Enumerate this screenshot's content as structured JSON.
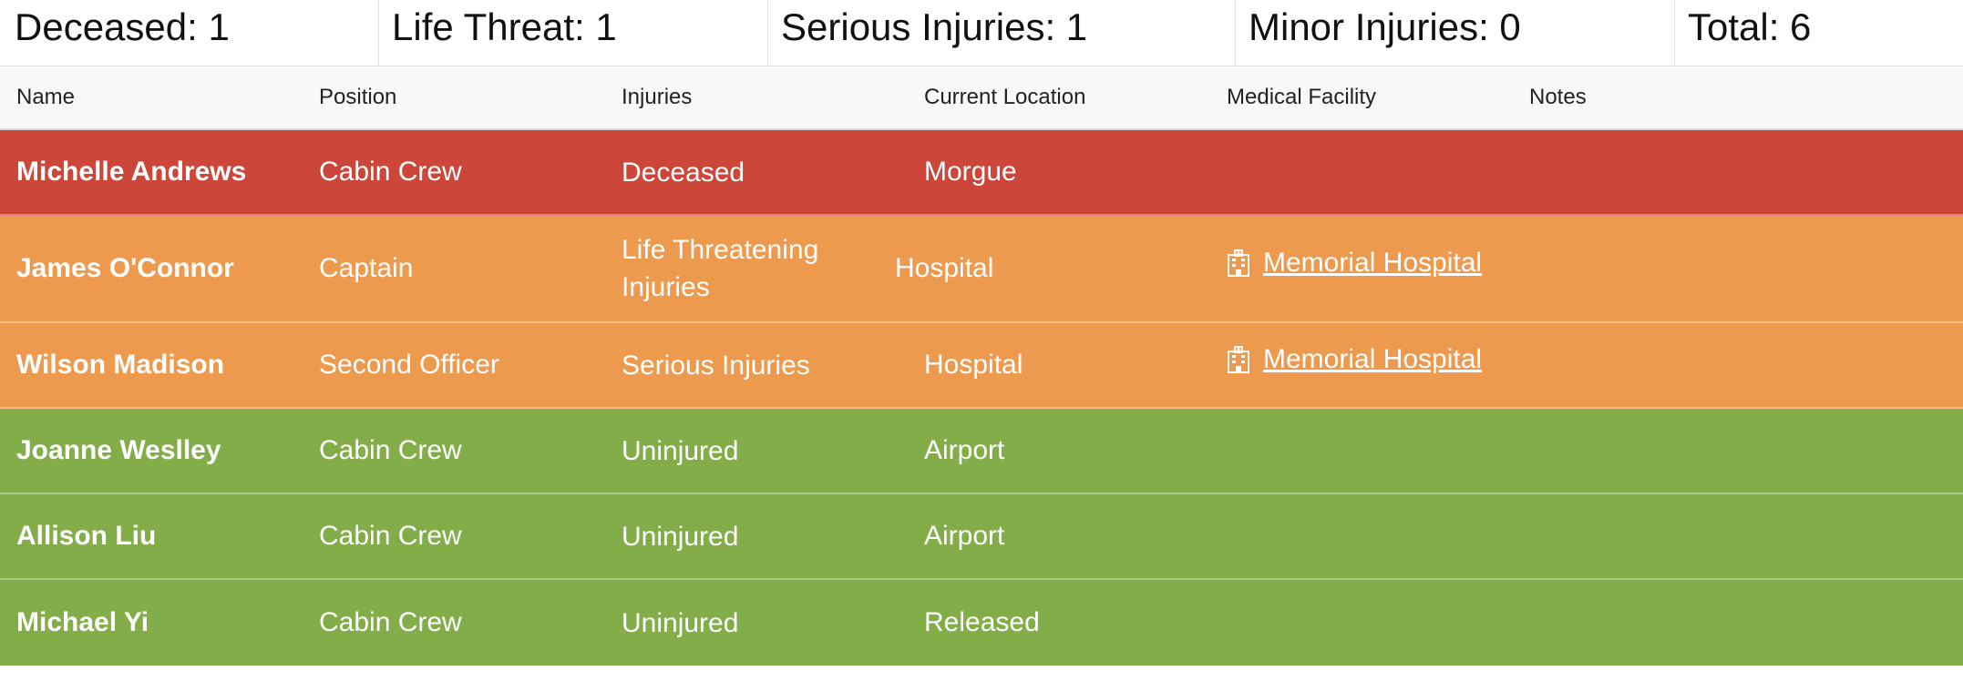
{
  "summary": {
    "deceased": "Deceased: 1",
    "life_threat": "Life Threat: 1",
    "serious": "Serious Injuries: 1",
    "minor": "Minor Injuries: 0",
    "total": "Total: 6"
  },
  "table": {
    "headers": {
      "name": "Name",
      "position": "Position",
      "injuries": "Injuries",
      "location": "Current Location",
      "facility": "Medical Facility",
      "notes": "Notes"
    },
    "rows": [
      {
        "name": "Michelle Andrews",
        "position": "Cabin Crew",
        "injuries": "Deceased",
        "location": "Morgue",
        "facility": "",
        "notes": ""
      },
      {
        "name": "James O'Connor",
        "position": "Captain",
        "injuries": "Life Threatening Injuries",
        "location": "Hospital",
        "facility": "Memorial Hospital",
        "notes": ""
      },
      {
        "name": "Wilson Madison",
        "position": "Second Officer",
        "injuries": "Serious Injuries",
        "location": "Hospital",
        "facility": "Memorial Hospital",
        "notes": ""
      },
      {
        "name": "Joanne Weslley",
        "position": "Cabin Crew",
        "injuries": "Uninjured",
        "location": "Airport",
        "facility": "",
        "notes": ""
      },
      {
        "name": "Allison Liu",
        "position": "Cabin Crew",
        "injuries": "Uninjured",
        "location": "Airport",
        "facility": "",
        "notes": ""
      },
      {
        "name": "Michael Yi",
        "position": "Cabin Crew",
        "injuries": "Uninjured",
        "location": "Released",
        "facility": "",
        "notes": ""
      }
    ]
  },
  "icons": {
    "facility": "hospital-building-icon"
  },
  "colors": {
    "deceased": "#cd463a",
    "injured": "#ee9a4e",
    "uninjured": "#82ad49"
  }
}
